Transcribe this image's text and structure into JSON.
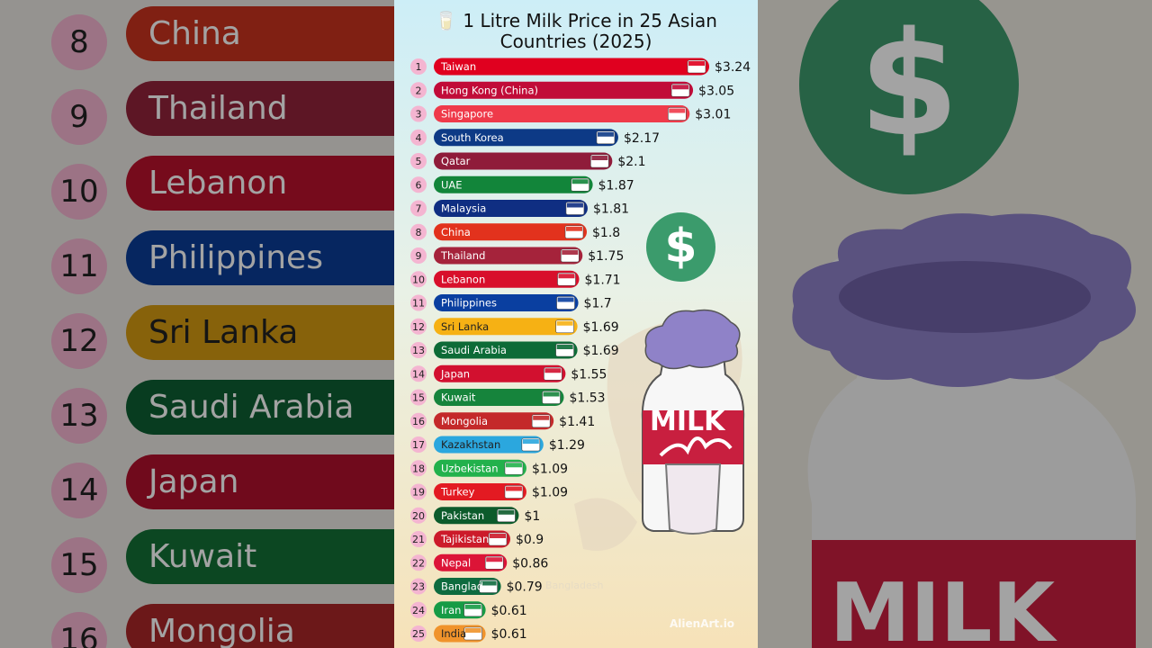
{
  "title": "🥛 1 Litre Milk Price in 25 Asian Countries (2025)",
  "title_lines": [
    "🥛 1 Litre Milk Price in 25 Asian",
    "Countries (2025)"
  ],
  "watermark": "AlienArt.io",
  "ghost_label": "Bangladesh",
  "dollar_glyph": "$",
  "milk_label": "MILK",
  "colors": {
    "rank_circle": "#f4b5d1",
    "dollar_green": "#3b9b6c"
  },
  "chart_data": {
    "type": "bar",
    "orientation": "horizontal",
    "title": "1 Litre Milk Price in 25 Asian Countries (2025)",
    "value_prefix": "$",
    "xlim": [
      0,
      3.24
    ],
    "grid": false,
    "categories": [
      "Taiwan",
      "Hong Kong (China)",
      "Singapore",
      "South Korea",
      "Qatar",
      "UAE",
      "Malaysia",
      "China",
      "Thailand",
      "Lebanon",
      "Philippines",
      "Sri Lanka",
      "Saudi Arabia",
      "Japan",
      "Kuwait",
      "Mongolia",
      "Kazakhstan",
      "Uzbekistan",
      "Turkey",
      "Pakistan",
      "Tajikistan",
      "Nepal",
      "Banglad",
      "Iran",
      "India"
    ],
    "ranks": [
      1,
      2,
      3,
      4,
      5,
      6,
      7,
      8,
      9,
      10,
      11,
      12,
      13,
      14,
      15,
      16,
      17,
      18,
      19,
      20,
      21,
      22,
      23,
      24,
      25
    ],
    "values": [
      3.24,
      3.05,
      3.01,
      2.17,
      2.1,
      1.87,
      1.81,
      1.8,
      1.75,
      1.71,
      1.7,
      1.69,
      1.69,
      1.55,
      1.53,
      1.41,
      1.29,
      1.09,
      1.09,
      1,
      0.9,
      0.86,
      0.79,
      0.61,
      0.61
    ],
    "value_labels": [
      "$3.24",
      "$3.05",
      "$3.01",
      "$2.17",
      "$2.1",
      "$1.87",
      "$1.81",
      "$1.8",
      "$1.75",
      "$1.71",
      "$1.7",
      "$1.69",
      "$1.69",
      "$1.55",
      "$1.53",
      "$1.41",
      "$1.29",
      "$1.09",
      "$1.09",
      "$1",
      "$0.9",
      "$0.86",
      "$0.79",
      "$0.61",
      "$0.61"
    ],
    "bar_colors": [
      "#e0001f",
      "#c10b38",
      "#ef3a4a",
      "#0d3a86",
      "#8f1c3a",
      "#12853a",
      "#0f2e82",
      "#e2321d",
      "#a5233b",
      "#d80f2b",
      "#0a3fa0",
      "#f6b114",
      "#0d6b37",
      "#d2102f",
      "#16843c",
      "#c4292a",
      "#2ba7de",
      "#22b14c",
      "#e31a22",
      "#0c5b2b",
      "#cc1a2a",
      "#dc1437",
      "#0e6b3f",
      "#169b45",
      "#f0932b"
    ],
    "label_colors": [
      "#fff",
      "#fff",
      "#fff",
      "#fff",
      "#fff",
      "#fff",
      "#fff",
      "#fff",
      "#fff",
      "#fff",
      "#fff",
      "#222",
      "#fff",
      "#fff",
      "#fff",
      "#fff",
      "#222",
      "#fff",
      "#fff",
      "#fff",
      "#fff",
      "#fff",
      "#fff",
      "#fff",
      "#222"
    ],
    "flag_icons": [
      "taiwan-flag-icon",
      "hong-kong-flag-icon",
      "singapore-flag-icon",
      "south-korea-flag-icon",
      "qatar-flag-icon",
      "uae-flag-icon",
      "malaysia-flag-icon",
      "china-flag-icon",
      "thailand-flag-icon",
      "lebanon-flag-icon",
      "philippines-flag-icon",
      "sri-lanka-flag-icon",
      "saudi-arabia-flag-icon",
      "japan-flag-icon",
      "kuwait-flag-icon",
      "mongolia-flag-icon",
      "kazakhstan-flag-icon",
      "uzbekistan-flag-icon",
      "turkey-flag-icon",
      "pakistan-flag-icon",
      "tajikistan-flag-icon",
      "nepal-flag-icon",
      "bangladesh-flag-icon",
      "iran-flag-icon",
      "india-flag-icon"
    ]
  },
  "background_left": {
    "rows": [
      {
        "rank": "8",
        "name": "China",
        "color": "#c9321f"
      },
      {
        "rank": "9",
        "name": "Thailand",
        "color": "#92233a"
      },
      {
        "rank": "10",
        "name": "Lebanon",
        "color": "#b9122c"
      },
      {
        "rank": "11",
        "name": "Philippines",
        "color": "#0a3c96"
      },
      {
        "rank": "12",
        "name": "Sri Lanka",
        "color": "#d49a12",
        "dark": true
      },
      {
        "rank": "13",
        "name": "Saudi Arabia",
        "color": "#0e5f33"
      },
      {
        "rank": "14",
        "name": "Japan",
        "color": "#b0102d"
      },
      {
        "rank": "15",
        "name": "Kuwait",
        "color": "#137036"
      },
      {
        "rank": "16",
        "name": "Mongolia",
        "color": "#a92628"
      }
    ]
  }
}
